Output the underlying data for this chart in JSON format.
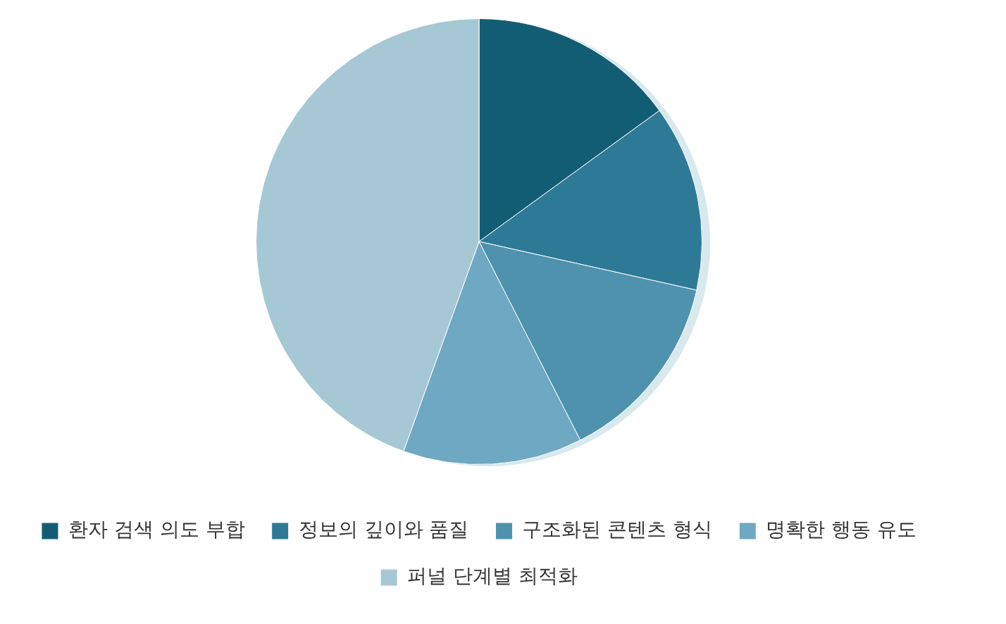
{
  "chart_data": {
    "type": "pie",
    "categories": [
      "환자 검색 의도 부합",
      "정보의 깊이와 품질",
      "구조화된 콘텐츠 형식",
      "명확한 행동 유도",
      "퍼널 단계별 최적화"
    ],
    "values": [
      15,
      13.5,
      14,
      13,
      44.5
    ],
    "colors": [
      "#135d74",
      "#2e7a96",
      "#4e92ad",
      "#6ea8c2",
      "#a5c8d4"
    ],
    "legend": "bottom"
  }
}
